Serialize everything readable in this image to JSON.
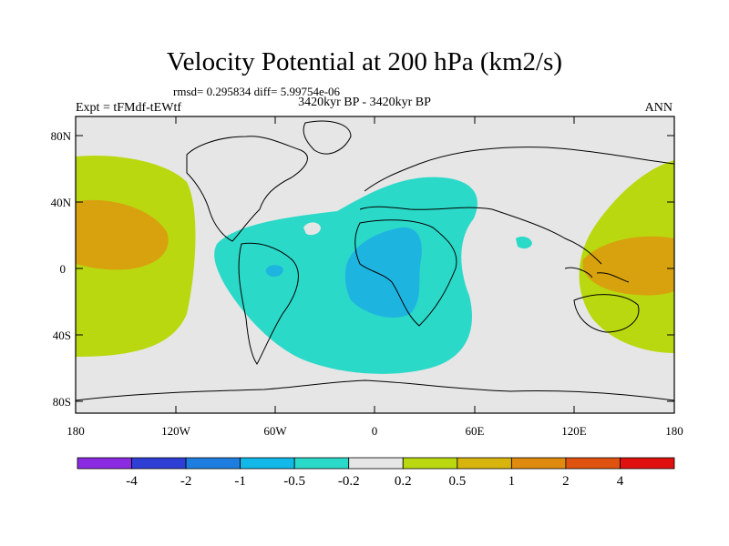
{
  "header": {
    "title": "Velocity Potential at 200 hPa (km2/s)",
    "stats": "rmsd= 0.295834 diff= 5.99754e-06",
    "period": "3420kyr BP - 3420kyr BP",
    "experiment": "Expt = tFMdf-tEWtf",
    "season": "ANN"
  },
  "axes": {
    "lat_labels": [
      "80N",
      "40N",
      "0",
      "40S",
      "80S"
    ],
    "lon_labels": [
      "180",
      "120W",
      "60W",
      "0",
      "60E",
      "120E",
      "180"
    ]
  },
  "colorbar": {
    "colors": [
      "#8a2be2",
      "#2f3fd6",
      "#1e7ee0",
      "#12b8e8",
      "#2bd9c8",
      "#e6e6e6",
      "#b9d80f",
      "#d8b40f",
      "#e08a0f",
      "#e0520f",
      "#e01010"
    ],
    "labels": [
      "-4",
      "-2",
      "-1",
      "-0.5",
      "-0.2",
      "0.2",
      "0.5",
      "1",
      "2",
      "4"
    ]
  },
  "colors": {
    "ocean_land_background": "#e6e6e6",
    "positive_weak": "#b9d80f",
    "positive_mod": "#d8a20f",
    "negative_weak": "#2bd9c8",
    "negative_mod": "#1eb4e0"
  }
}
